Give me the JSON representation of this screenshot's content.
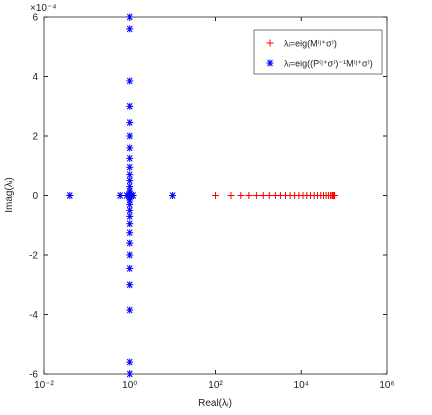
{
  "chart_data": {
    "type": "scatter",
    "xlabel": "Real(λᵢ)",
    "ylabel": "Imag(λᵢ)",
    "y_multiplier_label": "×10⁻⁴",
    "xscale": "log",
    "xlim": [
      0.01,
      1000000
    ],
    "xticks": [
      {
        "value": 0.01,
        "label": "10⁻²"
      },
      {
        "value": 1,
        "label": "10⁰"
      },
      {
        "value": 100,
        "label": "10²"
      },
      {
        "value": 10000,
        "label": "10⁴"
      },
      {
        "value": 1000000,
        "label": "10⁶"
      }
    ],
    "ylim": [
      -6,
      6
    ],
    "yticks": [
      -6,
      -4,
      -2,
      0,
      2,
      4,
      6
    ],
    "legend": "upper right",
    "series": [
      {
        "name": "λᵢ=eig(M⁽ʲ⁺σ⁾)",
        "color": "#ff0000",
        "marker": "plus",
        "x": [
          100,
          230,
          390,
          600,
          900,
          1300,
          1800,
          2500,
          3300,
          4300,
          5500,
          7000,
          8800,
          11000,
          13500,
          16500,
          20000,
          24000,
          28500,
          33000,
          38000,
          43000,
          48000,
          52000,
          55000,
          57000,
          58500,
          59500,
          60000
        ],
        "y": [
          0,
          0,
          0,
          0,
          0,
          0,
          0,
          0,
          0,
          0,
          0,
          0,
          0,
          0,
          0,
          0,
          0,
          0,
          0,
          0,
          0,
          0,
          0,
          0,
          0,
          0,
          0,
          0,
          0
        ]
      },
      {
        "name": "λᵢ=eig((P⁽ʲ⁺σ⁾)⁻¹M⁽ʲ⁺σ⁾)",
        "color": "#0000ff",
        "marker": "star",
        "x": [
          1,
          1,
          1,
          1,
          1,
          1,
          1,
          1,
          1,
          1,
          1,
          1,
          1,
          1,
          1,
          1,
          1,
          1,
          1,
          1,
          1,
          1,
          1,
          1,
          1,
          1,
          1,
          1,
          1,
          0.04,
          0.6,
          0.85,
          1.1,
          1.2,
          10
        ],
        "y": [
          6,
          5.6,
          3.85,
          3.0,
          2.45,
          2.0,
          1.6,
          1.25,
          0.95,
          0.7,
          0.5,
          0.3,
          0.15,
          0.05,
          0,
          -0.05,
          -0.15,
          -0.3,
          -0.5,
          -0.7,
          -0.95,
          -1.25,
          -1.6,
          -2.0,
          -2.45,
          -3.0,
          -3.85,
          -5.6,
          -6,
          0,
          0,
          0,
          0,
          0,
          0
        ]
      }
    ]
  }
}
